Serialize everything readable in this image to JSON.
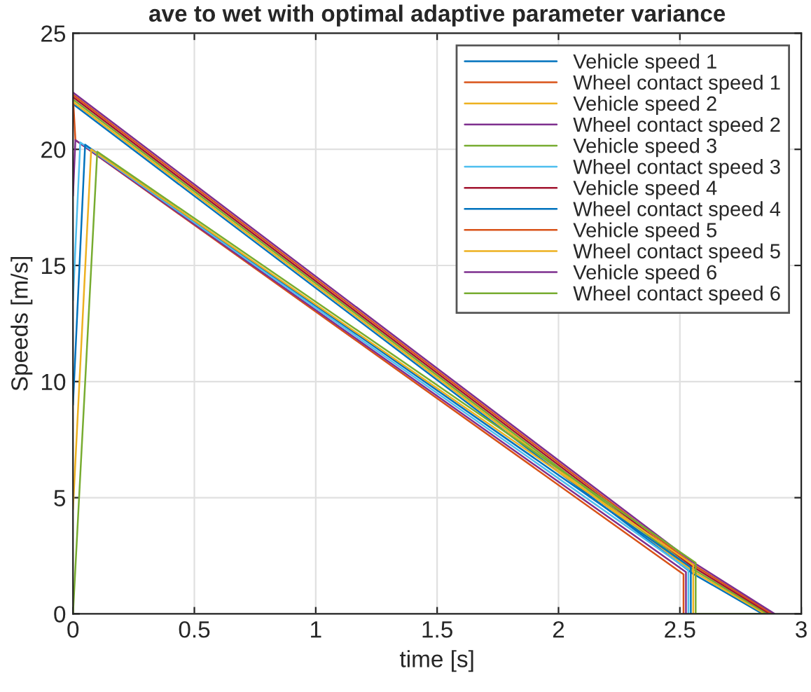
{
  "chart_data": {
    "type": "line",
    "title": "ave to wet with optimal adaptive parameter variance",
    "xlabel": "time [s]",
    "ylabel": "Speeds [m/s]",
    "xlim": [
      0,
      3
    ],
    "xticks": [
      0,
      0.5,
      1,
      1.5,
      2,
      2.5,
      3
    ],
    "ylim": [
      0,
      25
    ],
    "yticks": [
      0,
      5,
      10,
      15,
      20,
      25
    ],
    "grid": true,
    "legend": "top right",
    "series": [
      {
        "name": "Vehicle speed 1",
        "color": "#0072bd",
        "x": [
          0,
          2.55,
          2.84
        ],
        "values": [
          21.95,
          1.75,
          0
        ]
      },
      {
        "name": "Wheel contact speed 1",
        "color": "#d95319",
        "x": [
          0,
          0.01,
          2.515,
          2.515
        ],
        "values": [
          22.3,
          20.4,
          1.7,
          0
        ]
      },
      {
        "name": "Vehicle speed 2",
        "color": "#edb120",
        "x": [
          0,
          2.55,
          2.85
        ],
        "values": [
          22.05,
          1.85,
          0
        ]
      },
      {
        "name": "Wheel contact speed 2",
        "color": "#7e2f8e",
        "x": [
          0,
          0.01,
          2.525,
          2.525
        ],
        "values": [
          18,
          20.4,
          1.8,
          0
        ]
      },
      {
        "name": "Vehicle speed 3",
        "color": "#77ac30",
        "x": [
          0,
          2.55,
          2.86
        ],
        "values": [
          22.15,
          1.95,
          0
        ]
      },
      {
        "name": "Wheel contact speed 3",
        "color": "#4dbeee",
        "x": [
          0,
          0.03,
          2.535,
          2.535
        ],
        "values": [
          13.5,
          20.3,
          1.9,
          0
        ]
      },
      {
        "name": "Vehicle speed 4",
        "color": "#a2142f",
        "x": [
          0,
          2.55,
          2.87
        ],
        "values": [
          22.25,
          2.05,
          0
        ]
      },
      {
        "name": "Wheel contact speed 4",
        "color": "#0072bd",
        "x": [
          0,
          0.05,
          2.545,
          2.545
        ],
        "values": [
          9,
          20.2,
          2.0,
          0
        ]
      },
      {
        "name": "Vehicle speed 5",
        "color": "#d95319",
        "x": [
          0,
          2.55,
          2.88
        ],
        "values": [
          22.35,
          2.15,
          0
        ]
      },
      {
        "name": "Wheel contact speed 5",
        "color": "#edb120",
        "x": [
          0,
          0.075,
          2.555,
          2.555
        ],
        "values": [
          4.5,
          20.0,
          2.1,
          0
        ]
      },
      {
        "name": "Vehicle speed 6",
        "color": "#7e2f8e",
        "x": [
          0,
          2.55,
          2.89
        ],
        "values": [
          22.45,
          2.25,
          0
        ]
      },
      {
        "name": "Wheel contact speed 6",
        "color": "#77ac30",
        "x": [
          0,
          0.1,
          2.565,
          2.565,
          2.87
        ],
        "values": [
          0,
          19.9,
          2.2,
          0,
          0
        ]
      }
    ]
  }
}
